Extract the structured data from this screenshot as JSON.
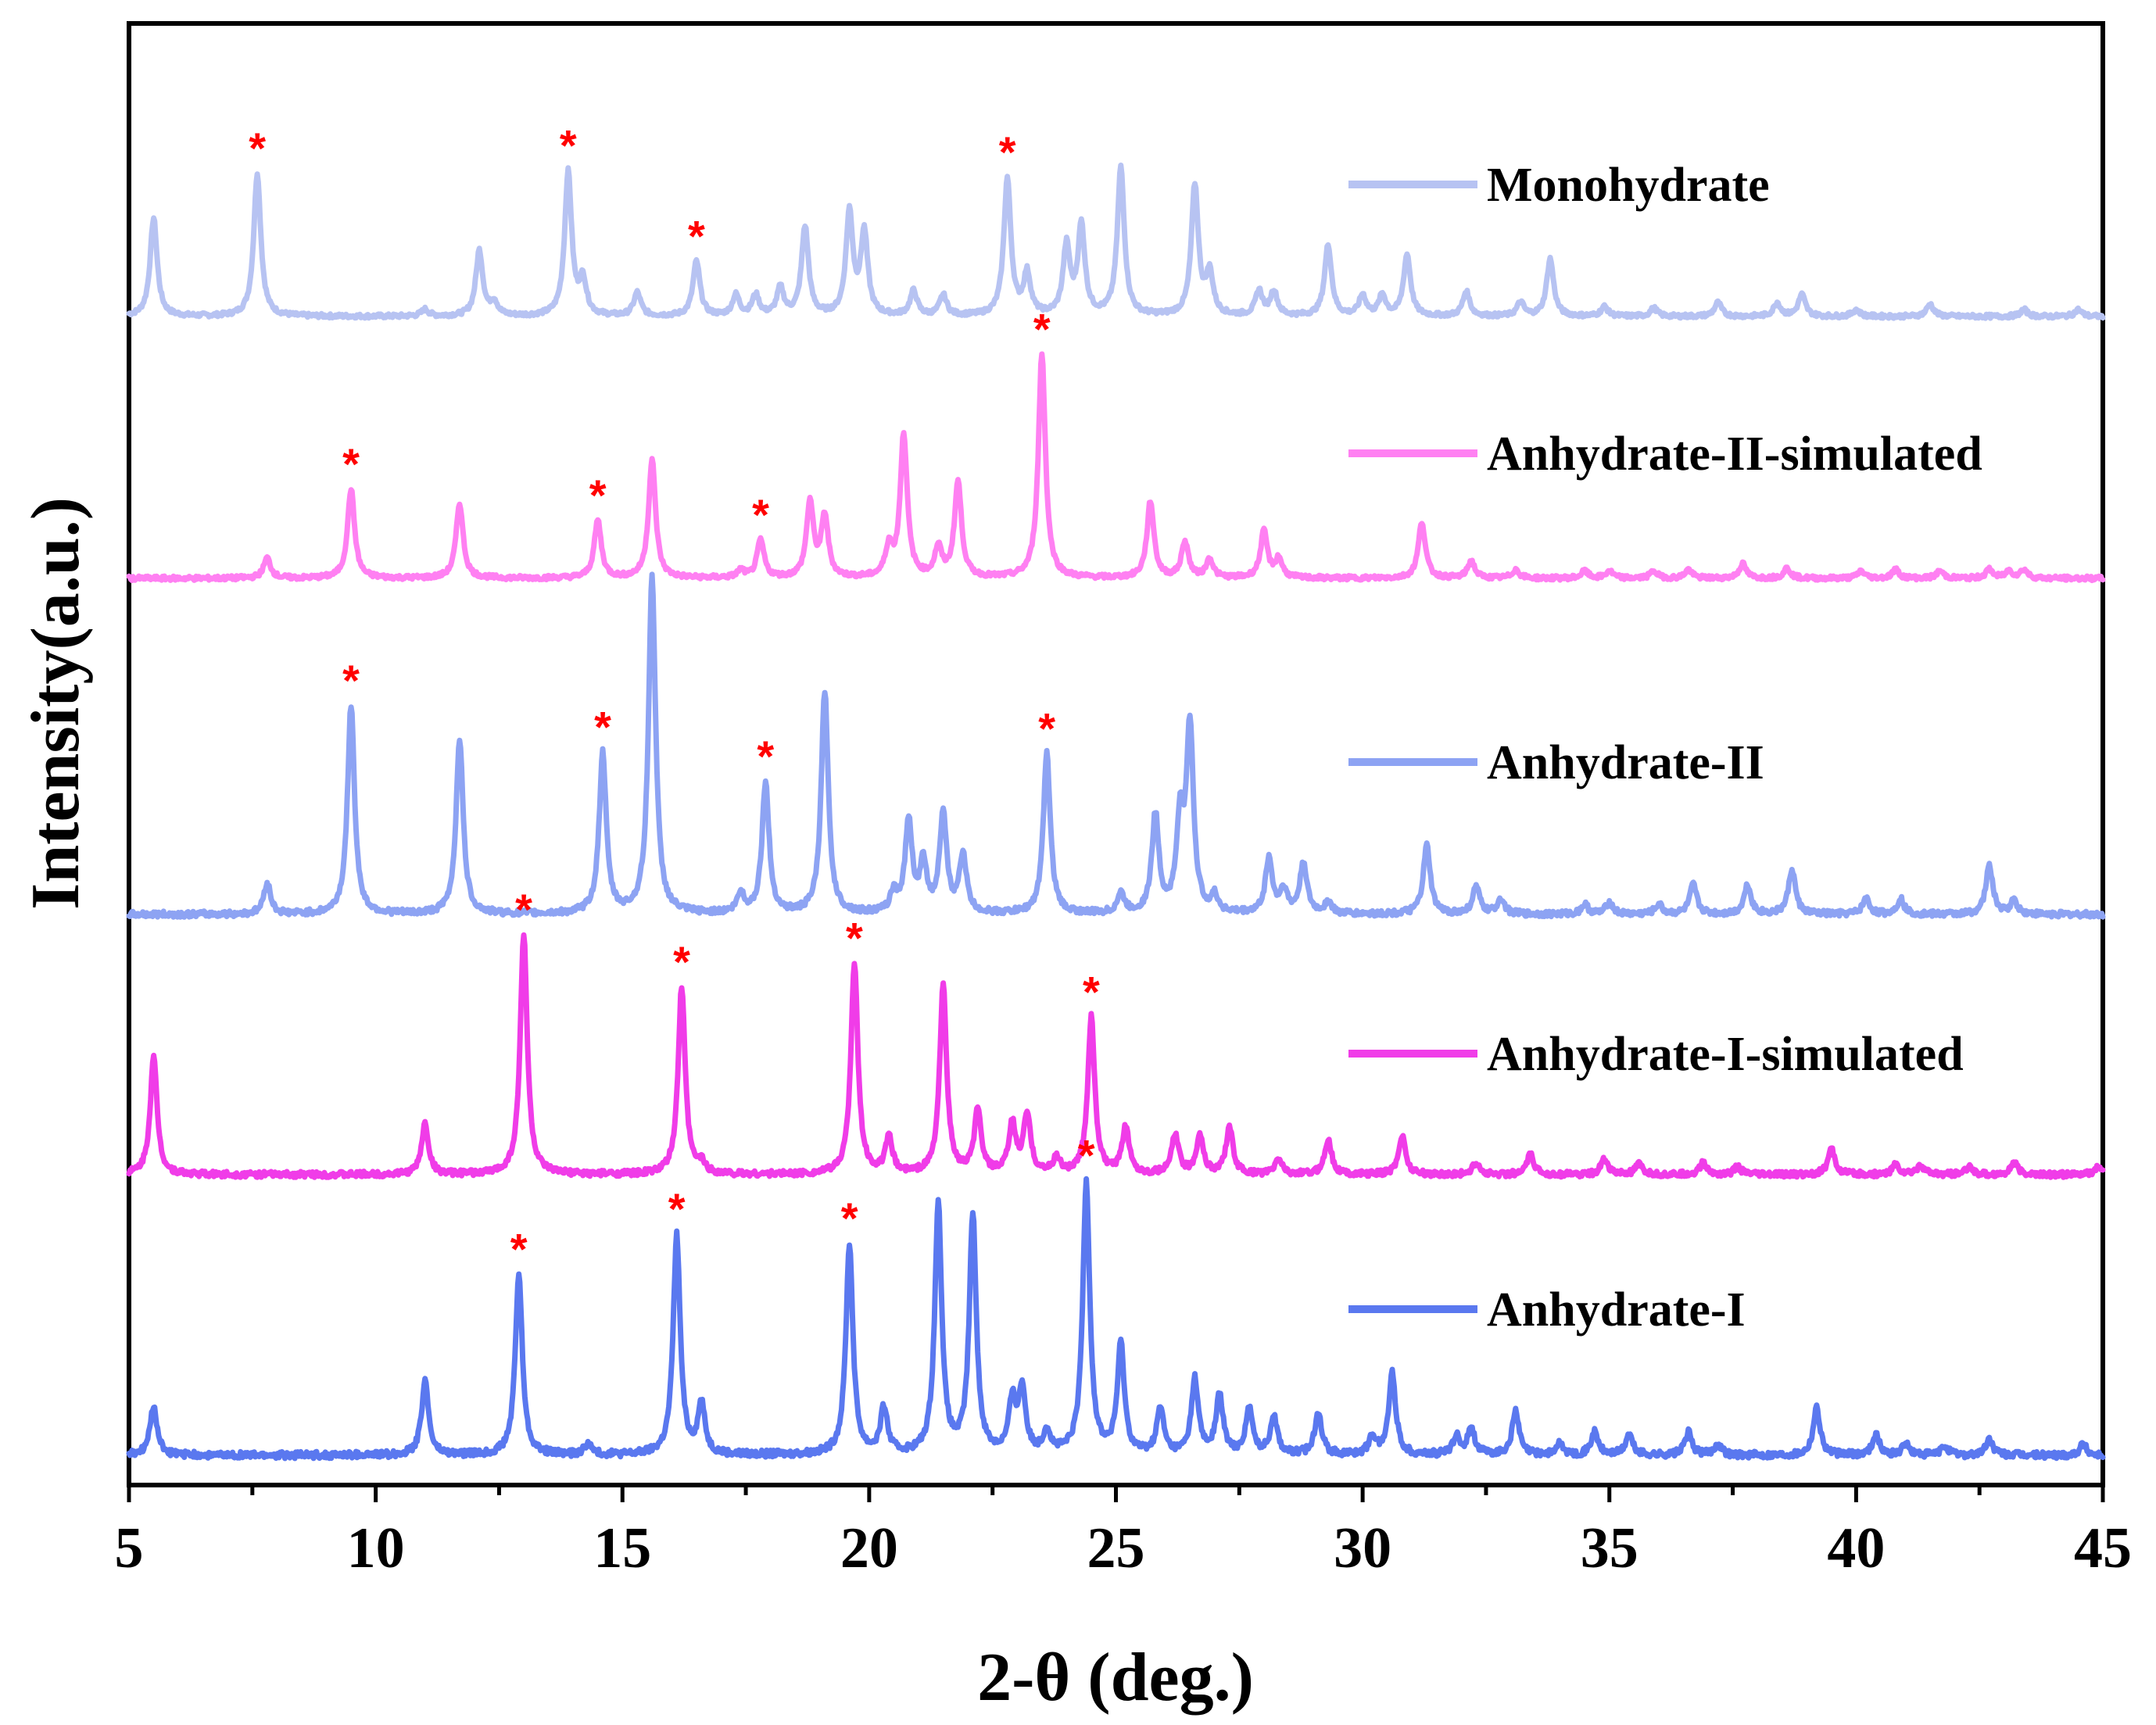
{
  "chart_data": {
    "type": "line",
    "xlabel": "2-θ (deg.)",
    "ylabel": "Intensity(a.u.)",
    "xlim": [
      5,
      45
    ],
    "xticks": [
      5,
      10,
      15,
      20,
      25,
      30,
      35,
      40,
      45
    ],
    "grid": false,
    "legend_placement": "right of each trace",
    "star_color": "#ff0000",
    "series": [
      {
        "name": "Monohydrate",
        "color": "#b7c3f2",
        "baseline": 0.0,
        "peaks": [
          [
            5.5,
            0.72
          ],
          [
            7.6,
            1.05
          ],
          [
            11.0,
            0.05
          ],
          [
            12.1,
            0.48
          ],
          [
            12.4,
            0.1
          ],
          [
            13.9,
            1.05
          ],
          [
            14.2,
            0.25
          ],
          [
            15.3,
            0.17
          ],
          [
            16.5,
            0.4
          ],
          [
            17.3,
            0.15
          ],
          [
            17.7,
            0.15
          ],
          [
            18.2,
            0.2
          ],
          [
            18.7,
            0.65
          ],
          [
            19.6,
            0.75
          ],
          [
            19.9,
            0.6
          ],
          [
            20.9,
            0.18
          ],
          [
            21.5,
            0.15
          ],
          [
            22.8,
            1.0
          ],
          [
            23.2,
            0.3
          ],
          [
            24.0,
            0.5
          ],
          [
            24.3,
            0.65
          ],
          [
            25.1,
            1.08
          ],
          [
            26.6,
            0.95
          ],
          [
            26.9,
            0.3
          ],
          [
            27.9,
            0.18
          ],
          [
            28.2,
            0.18
          ],
          [
            29.3,
            0.52
          ],
          [
            30.0,
            0.15
          ],
          [
            30.4,
            0.15
          ],
          [
            30.9,
            0.45
          ],
          [
            32.1,
            0.18
          ],
          [
            33.2,
            0.1
          ],
          [
            33.8,
            0.42
          ],
          [
            34.9,
            0.07
          ],
          [
            35.9,
            0.06
          ],
          [
            37.2,
            0.1
          ],
          [
            38.4,
            0.1
          ],
          [
            38.9,
            0.16
          ],
          [
            40.0,
            0.05
          ],
          [
            41.5,
            0.09
          ],
          [
            43.4,
            0.05
          ],
          [
            44.5,
            0.05
          ]
        ],
        "stars": [
          7.6,
          13.9,
          16.5,
          22.8
        ]
      },
      {
        "name": "Anhydrate-II-simulated",
        "color": "#ff80f2",
        "baseline": 0.0,
        "peaks": [
          [
            7.8,
            0.14
          ],
          [
            9.5,
            0.62
          ],
          [
            11.7,
            0.52
          ],
          [
            14.5,
            0.4
          ],
          [
            15.6,
            0.82
          ],
          [
            17.4,
            0.05
          ],
          [
            17.8,
            0.26
          ],
          [
            18.8,
            0.52
          ],
          [
            19.1,
            0.42
          ],
          [
            20.4,
            0.2
          ],
          [
            20.7,
            0.99
          ],
          [
            21.4,
            0.2
          ],
          [
            21.8,
            0.66
          ],
          [
            23.5,
            1.55
          ],
          [
            25.7,
            0.53
          ],
          [
            26.4,
            0.25
          ],
          [
            26.9,
            0.13
          ],
          [
            28.0,
            0.32
          ],
          [
            28.3,
            0.13
          ],
          [
            31.2,
            0.39
          ],
          [
            32.2,
            0.12
          ],
          [
            33.1,
            0.06
          ],
          [
            34.5,
            0.05
          ],
          [
            35.0,
            0.05
          ],
          [
            35.9,
            0.05
          ],
          [
            36.6,
            0.06
          ],
          [
            37.7,
            0.1
          ],
          [
            38.6,
            0.07
          ],
          [
            40.1,
            0.05
          ],
          [
            40.8,
            0.06
          ],
          [
            41.7,
            0.05
          ],
          [
            42.7,
            0.06
          ],
          [
            43.1,
            0.05
          ],
          [
            43.4,
            0.06
          ]
        ],
        "stars": [
          9.5,
          14.5,
          17.8,
          23.5
        ]
      },
      {
        "name": "Anhydrate-II",
        "color": "#8da3f3",
        "baseline": 0.0,
        "peaks": [
          [
            7.8,
            0.16
          ],
          [
            9.5,
            1.07
          ],
          [
            11.7,
            0.9
          ],
          [
            14.6,
            0.82
          ],
          [
            15.6,
            1.73
          ],
          [
            17.4,
            0.1
          ],
          [
            17.9,
            0.67
          ],
          [
            19.1,
            1.14
          ],
          [
            20.5,
            0.1
          ],
          [
            20.8,
            0.47
          ],
          [
            21.1,
            0.25
          ],
          [
            21.5,
            0.5
          ],
          [
            21.9,
            0.3
          ],
          [
            23.6,
            0.82
          ],
          [
            25.1,
            0.1
          ],
          [
            25.8,
            0.5
          ],
          [
            26.3,
            0.45
          ],
          [
            26.5,
            0.95
          ],
          [
            27.0,
            0.08
          ],
          [
            28.1,
            0.28
          ],
          [
            28.4,
            0.12
          ],
          [
            28.8,
            0.26
          ],
          [
            29.3,
            0.06
          ],
          [
            31.3,
            0.35
          ],
          [
            32.3,
            0.14
          ],
          [
            32.8,
            0.08
          ],
          [
            34.5,
            0.05
          ],
          [
            35.0,
            0.06
          ],
          [
            36.0,
            0.05
          ],
          [
            36.7,
            0.15
          ],
          [
            37.8,
            0.15
          ],
          [
            38.7,
            0.23
          ],
          [
            40.2,
            0.08
          ],
          [
            40.9,
            0.08
          ],
          [
            42.7,
            0.25
          ],
          [
            43.2,
            0.07
          ]
        ],
        "stars": [
          9.5,
          14.6,
          17.9,
          23.6
        ]
      },
      {
        "name": "Anhydrate-I-simulated",
        "color": "#f03ce8",
        "baseline": 0.0,
        "peaks": [
          [
            5.5,
            0.6
          ],
          [
            11.0,
            0.26
          ],
          [
            13.0,
            1.23
          ],
          [
            16.6,
            0.05
          ],
          [
            16.2,
            0.96
          ],
          [
            19.7,
            1.08
          ],
          [
            20.4,
            0.18
          ],
          [
            21.5,
            0.96
          ],
          [
            22.2,
            0.32
          ],
          [
            22.9,
            0.25
          ],
          [
            23.2,
            0.3
          ],
          [
            23.8,
            0.08
          ],
          [
            24.5,
            0.8
          ],
          [
            25.2,
            0.24
          ],
          [
            26.2,
            0.2
          ],
          [
            26.7,
            0.2
          ],
          [
            27.3,
            0.24
          ],
          [
            28.3,
            0.08
          ],
          [
            29.3,
            0.18
          ],
          [
            30.8,
            0.2
          ],
          [
            32.3,
            0.06
          ],
          [
            33.4,
            0.1
          ],
          [
            34.9,
            0.08
          ],
          [
            35.6,
            0.05
          ],
          [
            36.9,
            0.06
          ],
          [
            37.6,
            0.04
          ],
          [
            39.5,
            0.13
          ],
          [
            40.8,
            0.05
          ],
          [
            41.3,
            0.05
          ],
          [
            42.3,
            0.04
          ],
          [
            43.2,
            0.06
          ],
          [
            44.9,
            0.04
          ]
        ],
        "stars": [
          13.0,
          16.2,
          19.7,
          24.5
        ]
      },
      {
        "name": "Anhydrate-I",
        "color": "#5a78ef",
        "baseline": 0.0,
        "peaks": [
          [
            5.5,
            0.22
          ],
          [
            11.0,
            0.33
          ],
          [
            12.9,
            0.8
          ],
          [
            14.3,
            0.05
          ],
          [
            16.1,
            0.97
          ],
          [
            16.6,
            0.22
          ],
          [
            19.6,
            0.93
          ],
          [
            20.3,
            0.2
          ],
          [
            21.4,
            1.1
          ],
          [
            22.1,
            1.05
          ],
          [
            22.9,
            0.22
          ],
          [
            23.1,
            0.28
          ],
          [
            23.6,
            0.1
          ],
          [
            24.4,
            1.2
          ],
          [
            25.1,
            0.48
          ],
          [
            25.9,
            0.2
          ],
          [
            26.6,
            0.33
          ],
          [
            27.1,
            0.26
          ],
          [
            27.7,
            0.2
          ],
          [
            28.2,
            0.17
          ],
          [
            29.1,
            0.19
          ],
          [
            30.2,
            0.08
          ],
          [
            30.6,
            0.36
          ],
          [
            31.9,
            0.08
          ],
          [
            32.2,
            0.12
          ],
          [
            33.1,
            0.19
          ],
          [
            34.0,
            0.05
          ],
          [
            34.7,
            0.1
          ],
          [
            35.4,
            0.09
          ],
          [
            36.6,
            0.1
          ],
          [
            37.2,
            0.05
          ],
          [
            39.2,
            0.21
          ],
          [
            40.4,
            0.09
          ],
          [
            41.0,
            0.05
          ],
          [
            41.8,
            0.04
          ],
          [
            42.7,
            0.07
          ],
          [
            44.6,
            0.05
          ]
        ],
        "stars": [
          12.9,
          16.1,
          19.6,
          24.4
        ]
      }
    ]
  }
}
